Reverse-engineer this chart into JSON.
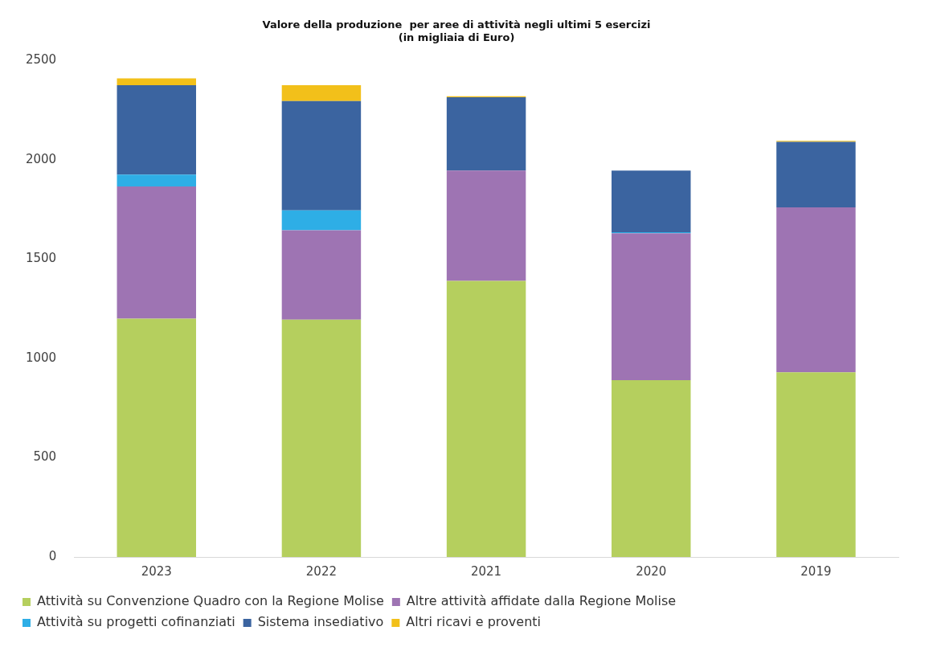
{
  "chart_data": {
    "type": "bar",
    "stacked": true,
    "title": "Valore della produzione  per aree di attività negli ultimi 5 esercizi",
    "subtitle": "(in migliaia di Euro)",
    "categories": [
      "2023",
      "2022",
      "2021",
      "2020",
      "2019"
    ],
    "series": [
      {
        "name": "Attività su Convenzione Quadro con la Regione Molise",
        "color": "#b5cf5e",
        "values": [
          1200,
          1195,
          1390,
          890,
          930
        ]
      },
      {
        "name": "Altre attività affidate dalla Regione Molise",
        "color": "#9e74b3",
        "values": [
          665,
          450,
          555,
          740,
          830
        ]
      },
      {
        "name": "Attività su progetti cofinanziati",
        "color": "#2eaee6",
        "values": [
          60,
          100,
          0,
          5,
          0
        ]
      },
      {
        "name": "Sistema insediativo",
        "color": "#3b64a0",
        "values": [
          450,
          550,
          370,
          310,
          330
        ]
      },
      {
        "name": "Altri ricavi e proventi",
        "color": "#f2c01a",
        "values": [
          35,
          80,
          5,
          0,
          5
        ]
      }
    ],
    "ylim": [
      0,
      2500
    ],
    "yticks": [
      0,
      500,
      1000,
      1500,
      2000,
      2500
    ],
    "grid": false,
    "legend": "bottom"
  }
}
